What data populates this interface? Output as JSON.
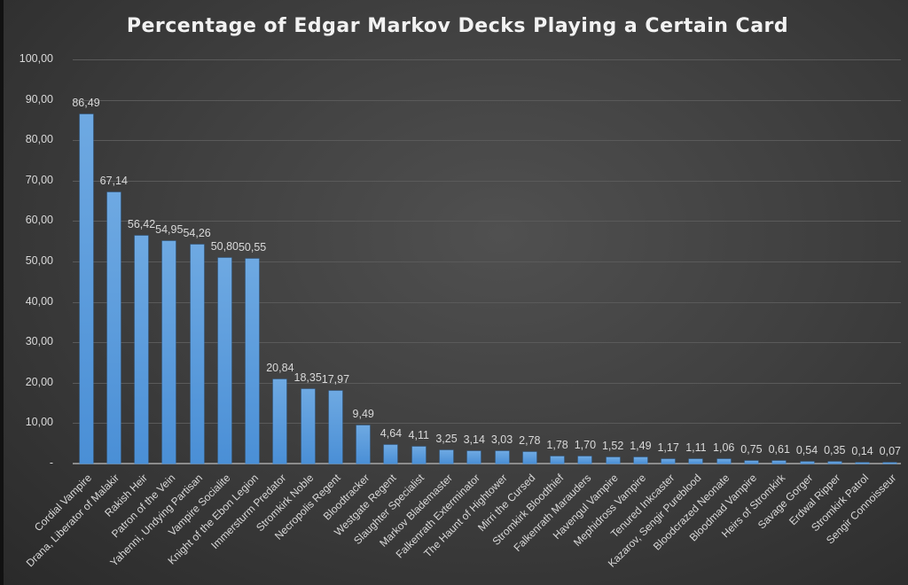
{
  "chart_data": {
    "type": "bar",
    "title": "Percentage of Edgar Markov Decks Playing a Certain Card",
    "xlabel": "",
    "ylabel": "",
    "ylim": [
      0,
      100
    ],
    "yticks": [
      "-",
      "10,00",
      "20,00",
      "30,00",
      "40,00",
      "50,00",
      "60,00",
      "70,00",
      "80,00",
      "90,00",
      "100,00"
    ],
    "grid": true,
    "legend": null,
    "bar_color": "#5b9bd5",
    "background": "#404040",
    "categories": [
      "Cordial Vampire",
      "Drana, Liberator of Malakir",
      "Rakish Heir",
      "Patron of the Vein",
      "Yahenni, Undying Partisan",
      "Vampire Socialite",
      "Knight of the Ebon Legion",
      "Immersturm Predator",
      "Stromkirk Noble",
      "Necropolis Regent",
      "Bloodtracker",
      "Westgate Regent",
      "Slaughter Specialist",
      "Markov Blademaster",
      "Falkenrath Exterminator",
      "The Haunt of Hightower",
      "Mirri the Cursed",
      "Stromkirk Bloodthief",
      "Falkenrath Marauders",
      "Havengul Vampire",
      "Mephidross Vampire",
      "Tenured Inkcaster",
      "Kazarov, Sengir Pureblood",
      "Bloodcrazed Neonate",
      "Bloodmad Vampire",
      "Heirs of Stromkirk",
      "Savage Gorger",
      "Erdwal Ripper",
      "Stromkirk Patrol",
      "Sengir Connoisseur"
    ],
    "values": [
      86.49,
      67.14,
      56.42,
      54.95,
      54.26,
      50.8,
      50.55,
      20.84,
      18.35,
      17.97,
      9.49,
      4.64,
      4.11,
      3.25,
      3.14,
      3.03,
      2.78,
      1.78,
      1.7,
      1.52,
      1.49,
      1.17,
      1.11,
      1.06,
      0.75,
      0.61,
      0.54,
      0.35,
      0.14,
      0.07
    ],
    "value_labels": [
      "86,49",
      "67,14",
      "56,42",
      "54,95",
      "54,26",
      "50,80",
      "50,55",
      "20,84",
      "18,35",
      "17,97",
      "9,49",
      "4,64",
      "4,11",
      "3,25",
      "3,14",
      "3,03",
      "2,78",
      "1,78",
      "1,70",
      "1,52",
      "1,49",
      "1,17",
      "1,11",
      "1,06",
      "0,75",
      "0,61",
      "0,54",
      "0,35",
      "0,14",
      "0,07"
    ]
  }
}
